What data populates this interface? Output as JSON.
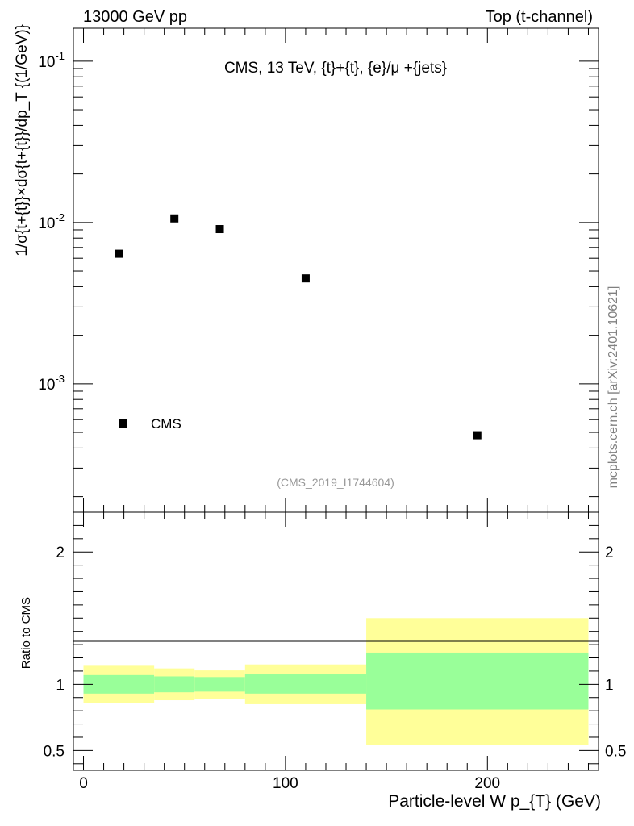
{
  "header": {
    "left": "13000 GeV pp",
    "right": "Top (t-channel)"
  },
  "watermark": "mcplots.cern.ch [arXiv:2401.10621]",
  "chart_data": [
    {
      "type": "scatter",
      "panel": "main",
      "title": "CMS, 13 TeV, {t}+{t}, {e}/μ +{jets}",
      "ylabel": "1/σ{t+{t}}×dσ{t+{t}}/dp_T {(1/GeV)}",
      "yscale": "log",
      "ylim": [
        0.00016,
        0.16
      ],
      "xlim": [
        -5,
        255
      ],
      "grid": false,
      "y_tick_labels": [
        "10^-3",
        "10^-2",
        "10^-1"
      ],
      "series": [
        {
          "name": "CMS",
          "x": [
            17.5,
            45,
            67.5,
            110,
            195
          ],
          "y": [
            0.0064,
            0.0106,
            0.0091,
            0.0045,
            0.00048
          ]
        }
      ],
      "legend": {
        "label": "CMS",
        "position": "bottom-left"
      },
      "analysis_id": "(CMS_2019_I1744604)"
    },
    {
      "type": "area",
      "panel": "ratio",
      "ylabel": "Ratio to CMS",
      "xlabel": "Particle-level W p_{T} (GeV)",
      "xlim": [
        -5,
        255
      ],
      "ylim": [
        0.35,
        2.3
      ],
      "reference_line": 1,
      "x_tick_labels": [
        "0",
        "100",
        "200"
      ],
      "y_tick_labels": [
        "0.5",
        "1",
        "2"
      ],
      "bins": [
        {
          "x_low": 0,
          "x_high": 35,
          "stat_low": 0.93,
          "stat_high": 1.07,
          "total_low": 0.86,
          "total_high": 1.14
        },
        {
          "x_low": 35,
          "x_high": 55,
          "stat_low": 0.94,
          "stat_high": 1.06,
          "total_low": 0.88,
          "total_high": 1.12
        },
        {
          "x_low": 55,
          "x_high": 80,
          "stat_low": 0.945,
          "stat_high": 1.055,
          "total_low": 0.89,
          "total_high": 1.105
        },
        {
          "x_low": 80,
          "x_high": 140,
          "stat_low": 0.93,
          "stat_high": 1.075,
          "total_low": 0.85,
          "total_high": 1.15
        },
        {
          "x_low": 140,
          "x_high": 250,
          "stat_low": 0.81,
          "stat_high": 1.24,
          "total_low": 0.54,
          "total_high": 1.5
        }
      ],
      "band_colors": {
        "stat": "#99ff99",
        "total": "#ffff99"
      }
    }
  ]
}
